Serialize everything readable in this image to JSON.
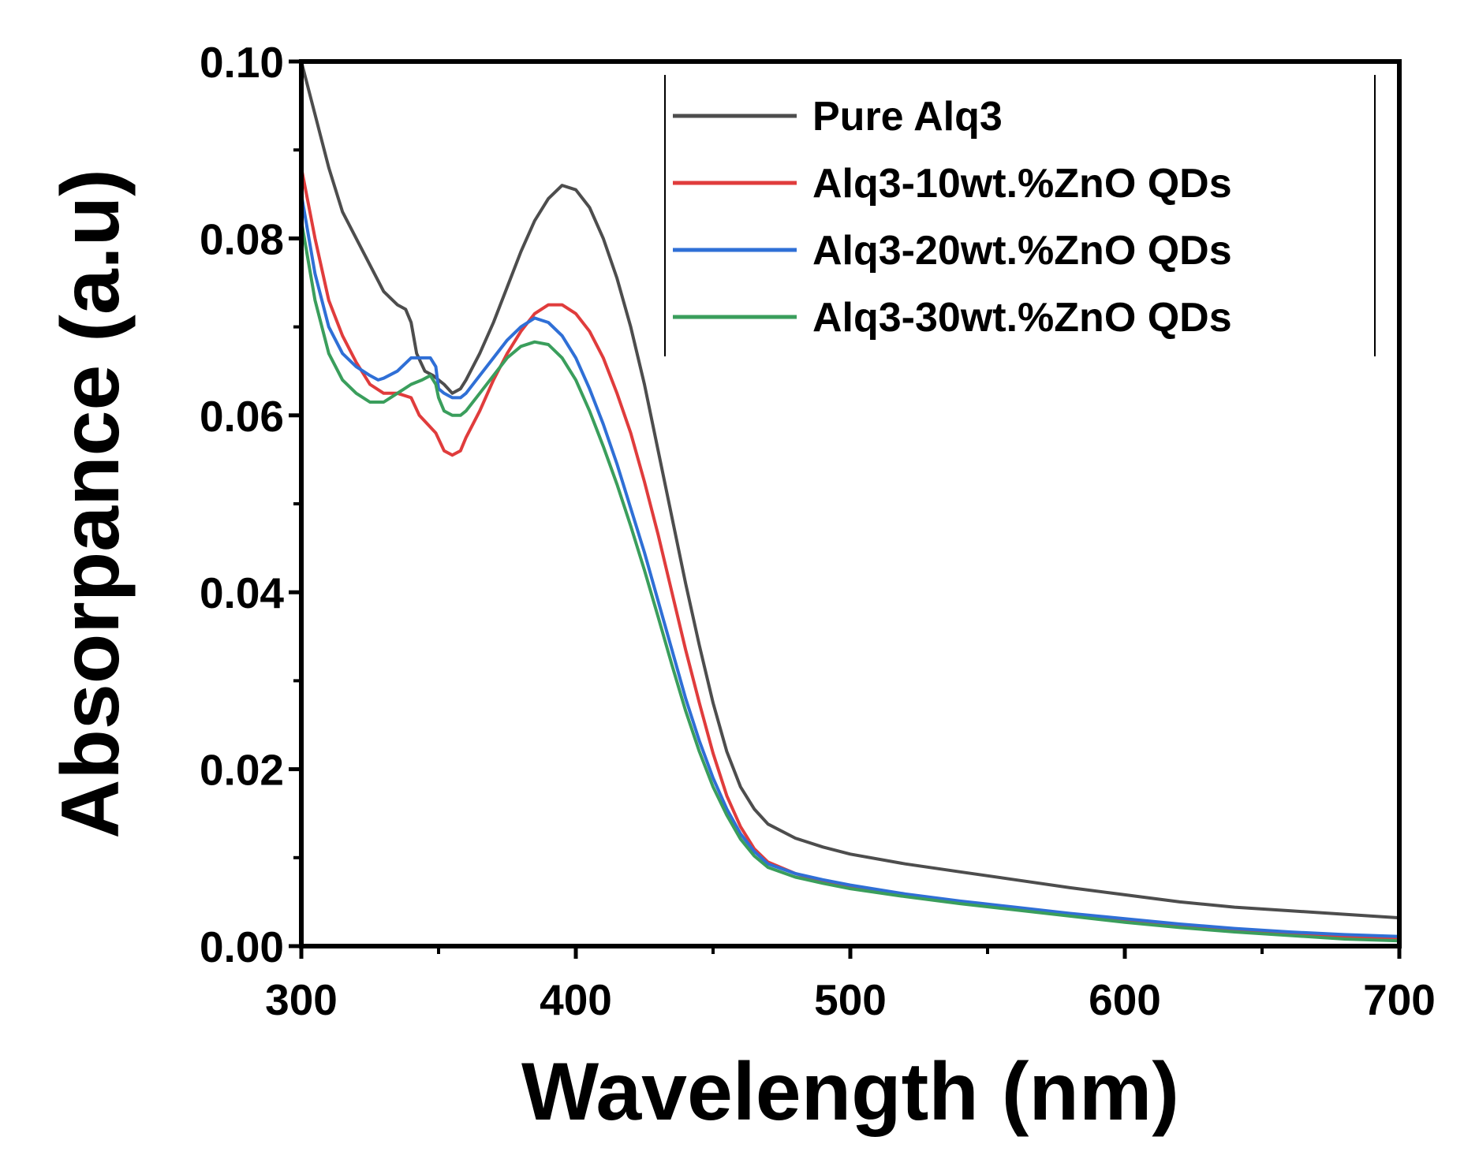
{
  "chart_data": {
    "type": "line",
    "xlabel": "Wavelength (nm)",
    "ylabel": "Absorpance (a.u)",
    "xlim": [
      300,
      700
    ],
    "ylim": [
      0,
      0.1
    ],
    "xticks": [
      300,
      400,
      500,
      600,
      700
    ],
    "xtick_labels": [
      "300",
      "400",
      "500",
      "600",
      "700"
    ],
    "yticks": [
      0,
      0.02,
      0.04,
      0.06,
      0.08,
      0.1
    ],
    "ytick_labels": [
      "0.00",
      "0.02",
      "0.04",
      "0.06",
      "0.08",
      "0.10"
    ],
    "grid": false,
    "legend": "top-right",
    "series": [
      {
        "name": "Pure Alq3",
        "color": "#4d4d4d",
        "points": [
          [
            300,
            0.1
          ],
          [
            305,
            0.094
          ],
          [
            310,
            0.088
          ],
          [
            315,
            0.083
          ],
          [
            320,
            0.08
          ],
          [
            325,
            0.077
          ],
          [
            330,
            0.074
          ],
          [
            335,
            0.0725
          ],
          [
            338,
            0.072
          ],
          [
            340,
            0.0705
          ],
          [
            342,
            0.067
          ],
          [
            345,
            0.065
          ],
          [
            348,
            0.0645
          ],
          [
            350,
            0.064
          ],
          [
            352,
            0.0635
          ],
          [
            355,
            0.0625
          ],
          [
            358,
            0.063
          ],
          [
            360,
            0.064
          ],
          [
            365,
            0.067
          ],
          [
            370,
            0.0705
          ],
          [
            375,
            0.0745
          ],
          [
            380,
            0.0785
          ],
          [
            385,
            0.082
          ],
          [
            390,
            0.0845
          ],
          [
            395,
            0.086
          ],
          [
            400,
            0.0855
          ],
          [
            405,
            0.0835
          ],
          [
            410,
            0.08
          ],
          [
            415,
            0.0755
          ],
          [
            420,
            0.07
          ],
          [
            425,
            0.0635
          ],
          [
            430,
            0.056
          ],
          [
            435,
            0.0485
          ],
          [
            440,
            0.041
          ],
          [
            445,
            0.034
          ],
          [
            450,
            0.0275
          ],
          [
            455,
            0.022
          ],
          [
            460,
            0.018
          ],
          [
            465,
            0.0155
          ],
          [
            470,
            0.0138
          ],
          [
            480,
            0.0122
          ],
          [
            490,
            0.0112
          ],
          [
            500,
            0.0104
          ],
          [
            520,
            0.0093
          ],
          [
            540,
            0.0084
          ],
          [
            560,
            0.0075
          ],
          [
            580,
            0.0066
          ],
          [
            600,
            0.0058
          ],
          [
            620,
            0.005
          ],
          [
            640,
            0.0044
          ],
          [
            660,
            0.004
          ],
          [
            680,
            0.0036
          ],
          [
            700,
            0.0032
          ]
        ]
      },
      {
        "name": "Alq3-10wt.%ZnO QDs",
        "color": "#e03c3c",
        "points": [
          [
            300,
            0.088
          ],
          [
            305,
            0.08
          ],
          [
            310,
            0.073
          ],
          [
            315,
            0.069
          ],
          [
            320,
            0.066
          ],
          [
            325,
            0.0635
          ],
          [
            330,
            0.0625
          ],
          [
            335,
            0.0625
          ],
          [
            340,
            0.062
          ],
          [
            343,
            0.06
          ],
          [
            346,
            0.059
          ],
          [
            349,
            0.058
          ],
          [
            352,
            0.056
          ],
          [
            355,
            0.0555
          ],
          [
            358,
            0.056
          ],
          [
            360,
            0.0575
          ],
          [
            365,
            0.0605
          ],
          [
            370,
            0.064
          ],
          [
            375,
            0.067
          ],
          [
            380,
            0.0695
          ],
          [
            385,
            0.0715
          ],
          [
            390,
            0.0725
          ],
          [
            395,
            0.0725
          ],
          [
            400,
            0.0715
          ],
          [
            405,
            0.0695
          ],
          [
            410,
            0.0665
          ],
          [
            415,
            0.0625
          ],
          [
            420,
            0.058
          ],
          [
            425,
            0.0525
          ],
          [
            430,
            0.0465
          ],
          [
            435,
            0.04
          ],
          [
            440,
            0.0335
          ],
          [
            445,
            0.0275
          ],
          [
            450,
            0.0218
          ],
          [
            455,
            0.017
          ],
          [
            460,
            0.0135
          ],
          [
            465,
            0.011
          ],
          [
            470,
            0.0095
          ],
          [
            480,
            0.0082
          ],
          [
            490,
            0.0073
          ],
          [
            500,
            0.0067
          ],
          [
            520,
            0.0057
          ],
          [
            540,
            0.0049
          ],
          [
            560,
            0.0042
          ],
          [
            580,
            0.0035
          ],
          [
            600,
            0.0029
          ],
          [
            620,
            0.0023
          ],
          [
            640,
            0.0018
          ],
          [
            660,
            0.0013
          ],
          [
            680,
            0.001
          ],
          [
            700,
            0.0008
          ]
        ]
      },
      {
        "name": "Alq3-20wt.%ZnO QDs",
        "color": "#2f6fd6",
        "points": [
          [
            300,
            0.085
          ],
          [
            305,
            0.076
          ],
          [
            310,
            0.07
          ],
          [
            315,
            0.067
          ],
          [
            320,
            0.0655
          ],
          [
            325,
            0.0645
          ],
          [
            328,
            0.064
          ],
          [
            330,
            0.0642
          ],
          [
            335,
            0.065
          ],
          [
            340,
            0.0665
          ],
          [
            344,
            0.0665
          ],
          [
            347,
            0.0665
          ],
          [
            349,
            0.0655
          ],
          [
            350,
            0.063
          ],
          [
            352,
            0.0625
          ],
          [
            355,
            0.062
          ],
          [
            358,
            0.062
          ],
          [
            360,
            0.0625
          ],
          [
            365,
            0.0645
          ],
          [
            370,
            0.0665
          ],
          [
            375,
            0.0685
          ],
          [
            380,
            0.07
          ],
          [
            385,
            0.071
          ],
          [
            390,
            0.0705
          ],
          [
            395,
            0.069
          ],
          [
            400,
            0.0665
          ],
          [
            405,
            0.063
          ],
          [
            410,
            0.059
          ],
          [
            415,
            0.0545
          ],
          [
            420,
            0.0495
          ],
          [
            425,
            0.0445
          ],
          [
            430,
            0.039
          ],
          [
            435,
            0.0335
          ],
          [
            440,
            0.028
          ],
          [
            445,
            0.0232
          ],
          [
            450,
            0.019
          ],
          [
            455,
            0.0155
          ],
          [
            460,
            0.0127
          ],
          [
            465,
            0.0107
          ],
          [
            470,
            0.0093
          ],
          [
            480,
            0.0082
          ],
          [
            490,
            0.0075
          ],
          [
            500,
            0.0069
          ],
          [
            520,
            0.0059
          ],
          [
            540,
            0.0051
          ],
          [
            560,
            0.0044
          ],
          [
            580,
            0.0037
          ],
          [
            600,
            0.0031
          ],
          [
            620,
            0.0025
          ],
          [
            640,
            0.002
          ],
          [
            660,
            0.0016
          ],
          [
            680,
            0.0013
          ],
          [
            700,
            0.0011
          ]
        ]
      },
      {
        "name": "Alq3-30wt.%ZnO QDs",
        "color": "#3a9e5c",
        "points": [
          [
            300,
            0.082
          ],
          [
            305,
            0.073
          ],
          [
            310,
            0.067
          ],
          [
            315,
            0.064
          ],
          [
            320,
            0.0625
          ],
          [
            325,
            0.0615
          ],
          [
            330,
            0.0615
          ],
          [
            335,
            0.0625
          ],
          [
            340,
            0.0635
          ],
          [
            344,
            0.064
          ],
          [
            347,
            0.0645
          ],
          [
            349,
            0.0635
          ],
          [
            350,
            0.062
          ],
          [
            352,
            0.0605
          ],
          [
            355,
            0.06
          ],
          [
            358,
            0.06
          ],
          [
            360,
            0.0605
          ],
          [
            365,
            0.0625
          ],
          [
            370,
            0.0645
          ],
          [
            375,
            0.0665
          ],
          [
            380,
            0.0678
          ],
          [
            385,
            0.0683
          ],
          [
            390,
            0.068
          ],
          [
            395,
            0.0665
          ],
          [
            400,
            0.064
          ],
          [
            405,
            0.0605
          ],
          [
            410,
            0.0565
          ],
          [
            415,
            0.0522
          ],
          [
            420,
            0.0475
          ],
          [
            425,
            0.0425
          ],
          [
            430,
            0.0372
          ],
          [
            435,
            0.0318
          ],
          [
            440,
            0.0266
          ],
          [
            445,
            0.022
          ],
          [
            450,
            0.018
          ],
          [
            455,
            0.0148
          ],
          [
            460,
            0.0121
          ],
          [
            465,
            0.0102
          ],
          [
            470,
            0.0089
          ],
          [
            480,
            0.0078
          ],
          [
            490,
            0.0071
          ],
          [
            500,
            0.0065
          ],
          [
            520,
            0.0056
          ],
          [
            540,
            0.0048
          ],
          [
            560,
            0.0041
          ],
          [
            580,
            0.0034
          ],
          [
            600,
            0.0027
          ],
          [
            620,
            0.0021
          ],
          [
            640,
            0.0016
          ],
          [
            660,
            0.0012
          ],
          [
            680,
            0.0008
          ],
          [
            700,
            0.0006
          ]
        ]
      }
    ]
  }
}
